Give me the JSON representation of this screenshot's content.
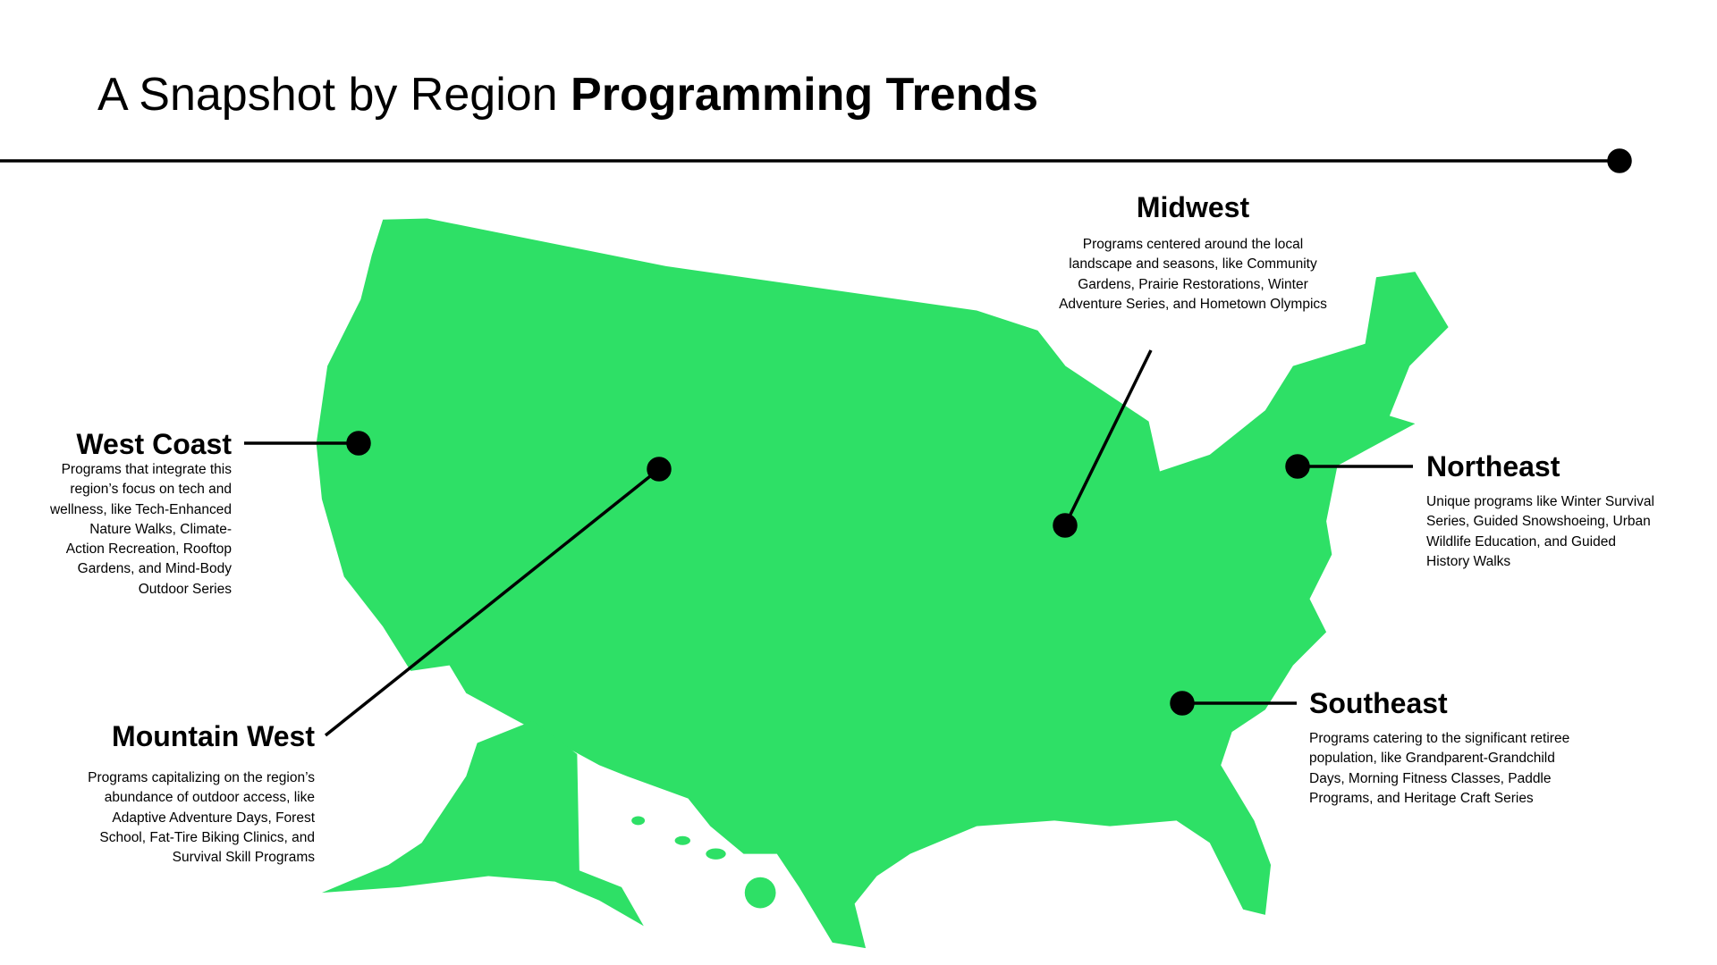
{
  "header": {
    "title_light": "A Snapshot by Region",
    "title_bold": "Programming Trends"
  },
  "regions": [
    {
      "name": "Midwest",
      "description_lines": [
        "Programs centered around the local",
        "landscape and seasons, like Community",
        "Gardens, Prairie Restorations, Winter",
        "Adventure Series, and Hometown Olympics"
      ]
    },
    {
      "name": "West Coast",
      "description_lines": [
        "Programs that integrate this",
        "region’s focus on tech and",
        "wellness, like Tech-Enhanced",
        "Nature Walks, Climate-",
        "Action Recreation, Rooftop",
        "Gardens, and Mind-Body",
        "Outdoor Series"
      ]
    },
    {
      "name": "Mountain West",
      "description_lines": [
        "Programs capitalizing on the region’s",
        "abundance of outdoor access, like",
        "Adaptive Adventure Days, Forest",
        "School, Fat-Tire Biking Clinics, and",
        "Survival Skill Programs"
      ]
    },
    {
      "name": "Northeast",
      "description_lines": [
        "Unique programs like Winter Survival",
        "Series, Guided Snowshoeing, Urban",
        "Wildlife Education, and Guided",
        "History Walks"
      ]
    },
    {
      "name": "Southeast",
      "description_lines": [
        "Programs catering to the significant retiree",
        "population, like Grandparent-Grandchild",
        "Days, Morning Fitness Classes, Paddle",
        "Programs, and Heritage Craft Series"
      ]
    }
  ]
}
